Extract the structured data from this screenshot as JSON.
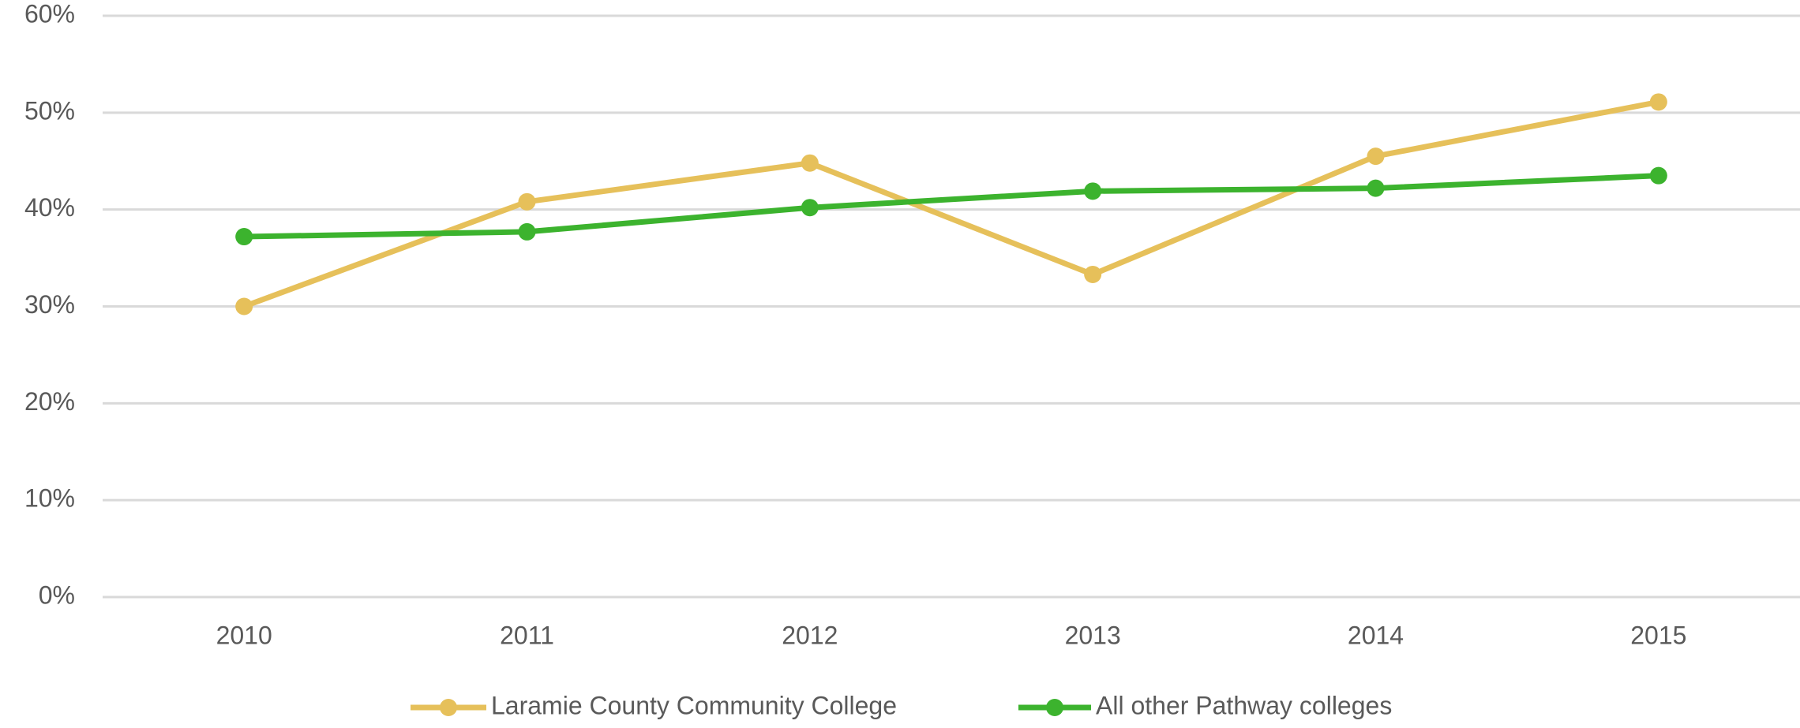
{
  "chart_data": {
    "type": "line",
    "categories": [
      "2010",
      "2011",
      "2012",
      "2013",
      "2014",
      "2015"
    ],
    "series": [
      {
        "name": "Laramie County Community College",
        "color": "#e6c05a",
        "values": [
          30,
          40.8,
          44.8,
          33.3,
          45.5,
          51.1
        ]
      },
      {
        "name": "All other Pathway colleges",
        "color": "#3cb32e",
        "values": [
          37.2,
          37.7,
          40.2,
          41.9,
          42.2,
          43.5
        ]
      }
    ],
    "ylim": [
      0,
      60
    ],
    "yticks": [
      {
        "value": 0,
        "label": "0%"
      },
      {
        "value": 10,
        "label": "10%"
      },
      {
        "value": 20,
        "label": "20%"
      },
      {
        "value": 30,
        "label": "30%"
      },
      {
        "value": 40,
        "label": "40%"
      },
      {
        "value": 50,
        "label": "50%"
      },
      {
        "value": 60,
        "label": "60%"
      }
    ],
    "grid": true,
    "legend": "bottom"
  }
}
